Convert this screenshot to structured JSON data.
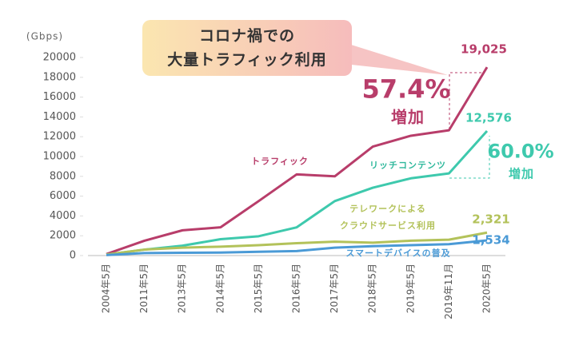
{
  "chart_data": {
    "type": "line",
    "title": "コロナ禍での\n大量トラフィック利用",
    "y_label": "(Gbps)",
    "categories": [
      "2004年5月",
      "2011年5月",
      "2013年5月",
      "2014年5月",
      "2015年5月",
      "2016年5月",
      "2017年5月",
      "2018年5月",
      "2019年5月",
      "2019年11月",
      "2020年5月"
    ],
    "ylim": [
      0,
      20000
    ],
    "yticks": [
      0,
      2000,
      4000,
      6000,
      8000,
      10000,
      12000,
      14000,
      16000,
      18000,
      20000
    ],
    "series": [
      {
        "name": "トラフィック",
        "color": "#b83d6a",
        "values": [
          150,
          1500,
          2550,
          2850,
          5500,
          8200,
          8000,
          11000,
          12100,
          12650,
          19025
        ],
        "value_labels": [
          null,
          null,
          null,
          null,
          null,
          null,
          null,
          null,
          null,
          null,
          "19,025"
        ]
      },
      {
        "name": "リッチコンテンツ",
        "color": "#3ec9ad",
        "values": [
          100,
          600,
          1000,
          1650,
          1950,
          2850,
          5500,
          6850,
          7800,
          8300,
          12576
        ],
        "value_labels": [
          null,
          null,
          null,
          null,
          null,
          null,
          null,
          null,
          null,
          null,
          "12,576"
        ]
      },
      {
        "name": "テレワークによる\nクラウドサービス利用",
        "color": "#b3c25a",
        "values": [
          100,
          600,
          800,
          900,
          1050,
          1250,
          1400,
          1300,
          1500,
          1600,
          2321
        ],
        "value_labels": [
          null,
          null,
          null,
          null,
          null,
          null,
          null,
          null,
          null,
          null,
          "2,321"
        ]
      },
      {
        "name": "スマートデバイスの普及",
        "color": "#4a9ad6",
        "values": [
          50,
          250,
          280,
          300,
          380,
          450,
          800,
          950,
          1050,
          1150,
          1534
        ],
        "value_labels": [
          null,
          null,
          null,
          null,
          null,
          null,
          null,
          null,
          null,
          null,
          "1,534"
        ]
      }
    ],
    "annotations": [
      {
        "text": "57.4%",
        "sub": "増加"
      },
      {
        "text": "60.0%",
        "sub": "増加"
      }
    ]
  }
}
